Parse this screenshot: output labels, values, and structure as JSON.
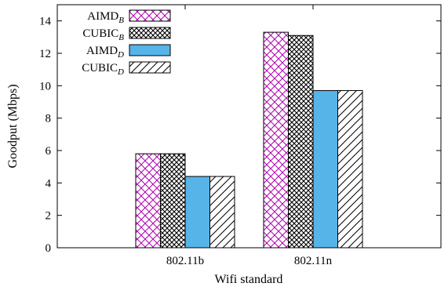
{
  "chart_data": {
    "type": "bar",
    "title": "",
    "xlabel": "Wifi standard",
    "ylabel": "Goodput (Mbps)",
    "ylim": [
      0,
      15
    ],
    "yticks": [
      0,
      2,
      4,
      6,
      8,
      10,
      12,
      14
    ],
    "categories": [
      "802.11b",
      "802.11n"
    ],
    "legend_position": "top-left",
    "grid": false,
    "series": [
      {
        "name": "AIMD",
        "subscript": "B",
        "values": [
          5.8,
          13.3
        ],
        "pattern": "crosshatch",
        "color": "#b000b0"
      },
      {
        "name": "CUBIC",
        "subscript": "B",
        "values": [
          5.8,
          13.1
        ],
        "pattern": "dense-crosshatch",
        "color": "#000000"
      },
      {
        "name": "AIMD",
        "subscript": "D",
        "values": [
          4.4,
          9.7
        ],
        "pattern": "solid",
        "color": "#56b4e9"
      },
      {
        "name": "CUBIC",
        "subscript": "D",
        "values": [
          4.4,
          9.7
        ],
        "pattern": "diagonal",
        "color": "#000000"
      }
    ]
  }
}
